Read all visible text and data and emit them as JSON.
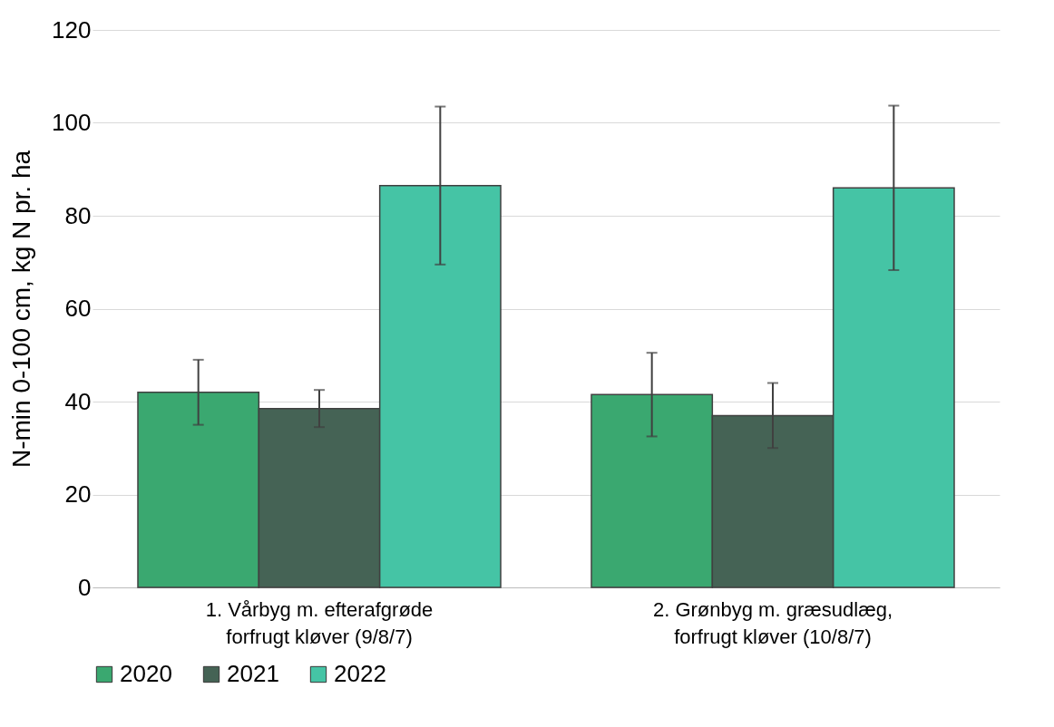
{
  "chart_data": {
    "type": "bar",
    "ylabel": "N-min 0-100 cm, kg N pr. ha",
    "categories": [
      "1. Vårbyg m. efterafgrøde\nforfrugt kløver (9/8/7)",
      "2. Grønbyg m. græsudlæg,\nforfrugt kløver (10/8/7)"
    ],
    "series": [
      {
        "name": "2020",
        "color": "#3aa870",
        "values": [
          42,
          41.5
        ],
        "errors": [
          7,
          9
        ]
      },
      {
        "name": "2021",
        "color": "#456355",
        "values": [
          38.5,
          37
        ],
        "errors": [
          4,
          7
        ]
      },
      {
        "name": "2022",
        "color": "#45c4a5",
        "values": [
          86.5,
          86
        ],
        "errors": [
          17,
          17.7
        ]
      }
    ],
    "ylim": [
      0,
      120
    ],
    "yticks": [
      0,
      20,
      40,
      60,
      80,
      100,
      120
    ],
    "grid": "y",
    "legend": "bottom"
  }
}
